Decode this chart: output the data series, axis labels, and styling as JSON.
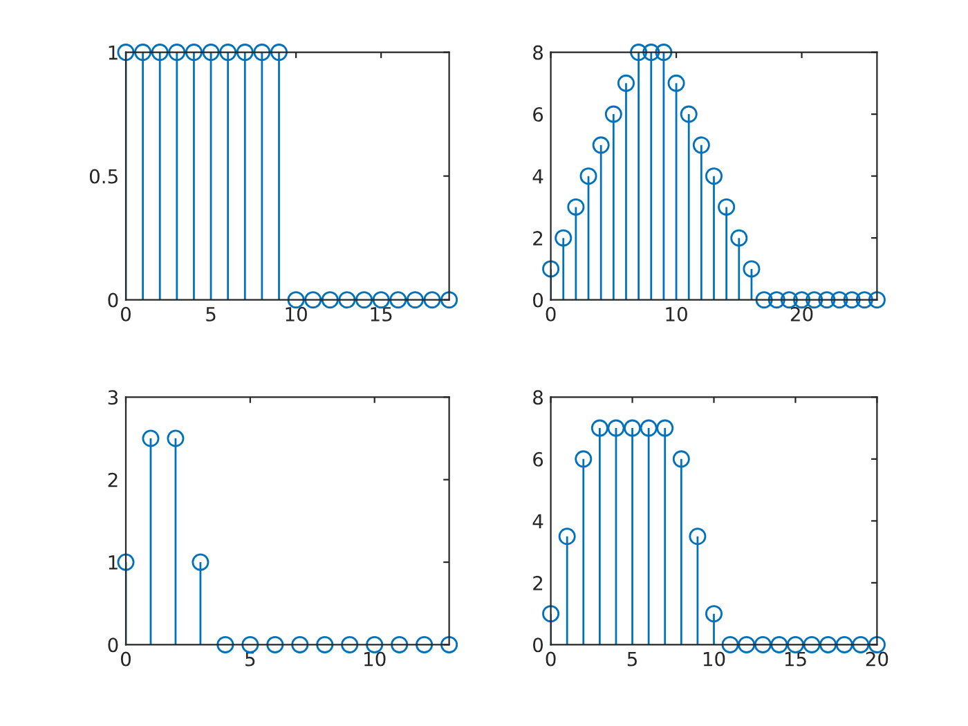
{
  "chart_data": [
    {
      "type": "lollipop",
      "x": [
        0,
        1,
        2,
        3,
        4,
        5,
        6,
        7,
        8,
        9,
        10,
        11,
        12,
        13,
        14,
        15,
        16,
        17,
        18,
        19
      ],
      "values": [
        1,
        1,
        1,
        1,
        1,
        1,
        1,
        1,
        1,
        1,
        0,
        0,
        0,
        0,
        0,
        0,
        0,
        0,
        0,
        0
      ],
      "color": "#0072bd",
      "marker": "circle",
      "xlim": [
        0,
        19
      ],
      "xticks": [
        0,
        5,
        10,
        15
      ],
      "ylim": [
        0,
        1
      ],
      "yticks": [
        0,
        0.5,
        1
      ]
    },
    {
      "type": "lollipop",
      "x": [
        0,
        1,
        2,
        3,
        4,
        5,
        6,
        7,
        8,
        9,
        10,
        11,
        12,
        13,
        14,
        15,
        16,
        17,
        18,
        19,
        20,
        21,
        22,
        23,
        24,
        25,
        26
      ],
      "values": [
        1,
        2,
        3,
        4,
        5,
        6,
        7,
        8,
        8,
        8,
        7,
        6,
        5,
        4,
        3,
        2,
        1,
        0,
        0,
        0,
        0,
        0,
        0,
        0,
        0,
        0,
        0
      ],
      "color": "#0072bd",
      "marker": "circle",
      "xlim": [
        0,
        26
      ],
      "xticks": [
        0,
        10,
        20
      ],
      "ylim": [
        0,
        8
      ],
      "yticks": [
        0,
        2,
        4,
        6,
        8
      ]
    },
    {
      "type": "lollipop",
      "x": [
        0,
        1,
        2,
        3,
        4,
        5,
        6,
        7,
        8,
        9,
        10,
        11,
        12,
        13
      ],
      "values": [
        1,
        2.5,
        2.5,
        1,
        0,
        0,
        0,
        0,
        0,
        0,
        0,
        0,
        0,
        0
      ],
      "color": "#0072bd",
      "marker": "circle",
      "xlim": [
        0,
        13
      ],
      "xticks": [
        0,
        5,
        10
      ],
      "ylim": [
        0,
        3
      ],
      "yticks": [
        0,
        1,
        2,
        3
      ]
    },
    {
      "type": "lollipop",
      "x": [
        0,
        1,
        2,
        3,
        4,
        5,
        6,
        7,
        8,
        9,
        10,
        11,
        12,
        13,
        14,
        15,
        16,
        17,
        18,
        19,
        20
      ],
      "values": [
        1,
        3.5,
        6,
        7,
        7,
        7,
        7,
        7,
        6,
        3.5,
        1,
        0,
        0,
        0,
        0,
        0,
        0,
        0,
        0,
        0,
        0
      ],
      "color": "#0072bd",
      "marker": "circle",
      "xlim": [
        0,
        20
      ],
      "xticks": [
        0,
        5,
        10,
        15,
        20
      ],
      "ylim": [
        0,
        8
      ],
      "yticks": [
        0,
        2,
        4,
        6,
        8
      ]
    }
  ]
}
